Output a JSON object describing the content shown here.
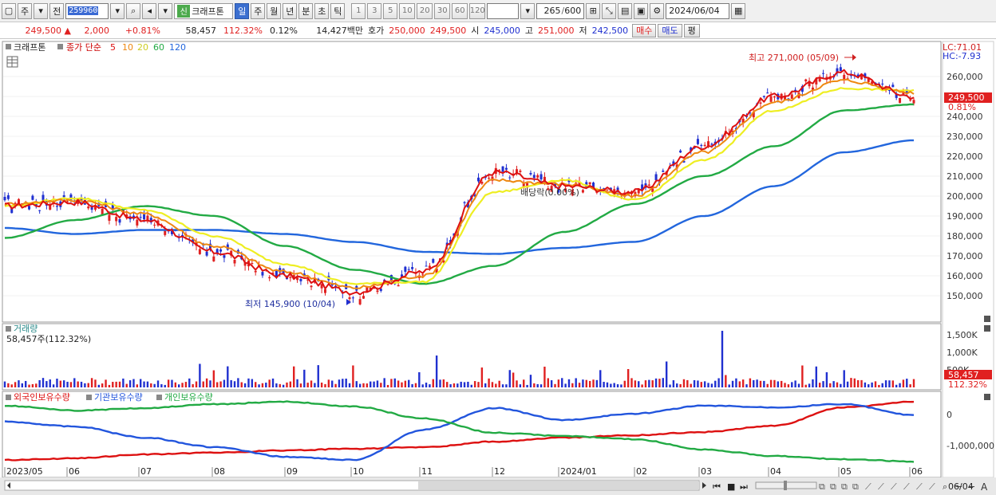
{
  "toolbar": {
    "chart_type_label": "주",
    "prev_label": "전",
    "stock_code": "259960",
    "stock_name": "크래프톤",
    "sin_badge": "신",
    "periods": [
      "일",
      "주",
      "월",
      "년",
      "분",
      "초",
      "틱"
    ],
    "active_period": "일",
    "interval_numbers": [
      "1",
      "3",
      "5",
      "10",
      "20",
      "30",
      "60",
      "120"
    ],
    "bar_count": "265",
    "bar_total": "600",
    "date": "2024/06/04"
  },
  "quote": {
    "price": "249,500",
    "change": "2,000",
    "change_pct": "+0.81%",
    "volume": "58,457",
    "volume_ratio": "112.32%",
    "turnover_pct": "0.12%",
    "trade_value": "14,427백만",
    "hoga_label": "호가",
    "hoga_ask": "250,000",
    "hoga_bid": "249,500",
    "open_label": "시",
    "open": "245,000",
    "high_label": "고",
    "high": "251,000",
    "low_label": "저",
    "low": "242,500",
    "buy_label": "매수",
    "sell_label": "매도",
    "eval_label": "평"
  },
  "price_pane": {
    "legend": {
      "stock": "크래프톤",
      "title": "종가 단순",
      "ma": [
        {
          "label": "5",
          "color": "#dd1111"
        },
        {
          "label": "10",
          "color": "#ee8811"
        },
        {
          "label": "20",
          "color": "#dddd22"
        },
        {
          "label": "60",
          "color": "#22aa44"
        },
        {
          "label": "120",
          "color": "#2266dd"
        }
      ]
    },
    "lc": "LC:71.01",
    "hc": "HC:-7.93",
    "y_ticks": [
      "260,000",
      "250,000",
      "240,000",
      "230,000",
      "220,000",
      "210,000",
      "200,000",
      "190,000",
      "180,000",
      "170,000",
      "160,000",
      "150,000"
    ],
    "last_price": "249,500",
    "last_pct": "0.81%",
    "annotations": {
      "high": "최고 271,000 (05/09)",
      "low": "최저 145,900 (10/04)",
      "dividend": "배당락(0.00%)"
    }
  },
  "volume_pane": {
    "title": "거래량",
    "value": "58,457주(112.32%)",
    "y_ticks": [
      "1,500K",
      "1,000K",
      "500K"
    ],
    "last_volume": "58,457",
    "last_pct": "112.32%"
  },
  "holdings_pane": {
    "series": [
      {
        "label": "외국인보유수량",
        "color": "#dd1111"
      },
      {
        "label": "기관보유수량",
        "color": "#2255dd"
      },
      {
        "label": "개인보유수량",
        "color": "#22aa44"
      }
    ],
    "y_ticks": [
      "0",
      "-1,000,000"
    ]
  },
  "x_axis": {
    "labels": [
      "2023/05",
      "06",
      "07",
      "08",
      "09",
      "10",
      "11",
      "12",
      "2024/01",
      "02",
      "03",
      "04",
      "05",
      "06"
    ],
    "right_label": "06/04"
  },
  "colors": {
    "up": "#e02020",
    "down": "#2030d0",
    "ma5": "#dd1111",
    "ma10": "#ee8811",
    "ma20": "#eeee22",
    "ma60": "#22aa44",
    "ma120": "#2266dd"
  },
  "chart_data": {
    "type": "line",
    "x": [
      "2023/05",
      "06",
      "07",
      "08",
      "09",
      "10",
      "11",
      "12",
      "2024/01",
      "02",
      "03",
      "04",
      "05",
      "06"
    ],
    "ylim": [
      140000,
      275000
    ],
    "series": [
      {
        "name": "5",
        "values": [
          195000,
          197000,
          188000,
          172000,
          160000,
          152000,
          162000,
          212000,
          205000,
          202000,
          225000,
          250000,
          262000,
          250000
        ]
      },
      {
        "name": "10",
        "values": [
          196000,
          198000,
          191000,
          175000,
          162000,
          154000,
          160000,
          208000,
          206000,
          200000,
          222000,
          247000,
          258000,
          252000
        ]
      },
      {
        "name": "20",
        "values": [
          195000,
          199000,
          193000,
          180000,
          166000,
          156000,
          157000,
          202000,
          208000,
          198000,
          218000,
          243000,
          254000,
          253000
        ]
      },
      {
        "name": "60",
        "values": [
          179000,
          188000,
          195000,
          190000,
          175000,
          163000,
          156000,
          165000,
          182000,
          196000,
          210000,
          225000,
          243000,
          246000
        ]
      },
      {
        "name": "120",
        "values": [
          184000,
          181000,
          183000,
          183000,
          181000,
          177000,
          172000,
          171000,
          174000,
          177000,
          190000,
          205000,
          222000,
          228000
        ]
      }
    ]
  }
}
